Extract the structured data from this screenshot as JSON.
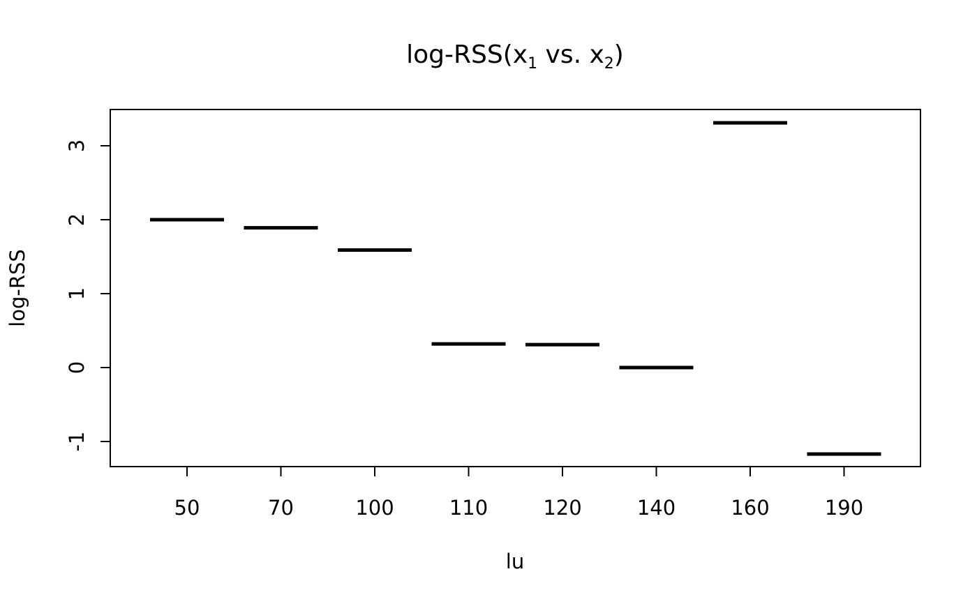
{
  "chart_data": {
    "type": "bar",
    "title": {
      "base": "log-RSS(x",
      "sub1": "1",
      "mid": " vs. x",
      "sub2": "2",
      "end": ")"
    },
    "xlabel": "lu",
    "ylabel": "log-RSS",
    "categories": [
      "50",
      "70",
      "100",
      "110",
      "120",
      "140",
      "160",
      "190"
    ],
    "values": [
      2.0,
      1.89,
      1.59,
      0.32,
      0.31,
      0.0,
      3.31,
      -1.17
    ],
    "y_ticks": [
      -1,
      0,
      1,
      2,
      3
    ],
    "y_tick_labels": [
      "-1",
      "0",
      "1",
      "2",
      "3"
    ],
    "ylim": [
      -1.35,
      3.5
    ],
    "grid": false,
    "legend": "none",
    "mark_style": "horizontal segment per category",
    "colors": {
      "line": "#000000",
      "background": "#ffffff"
    }
  }
}
